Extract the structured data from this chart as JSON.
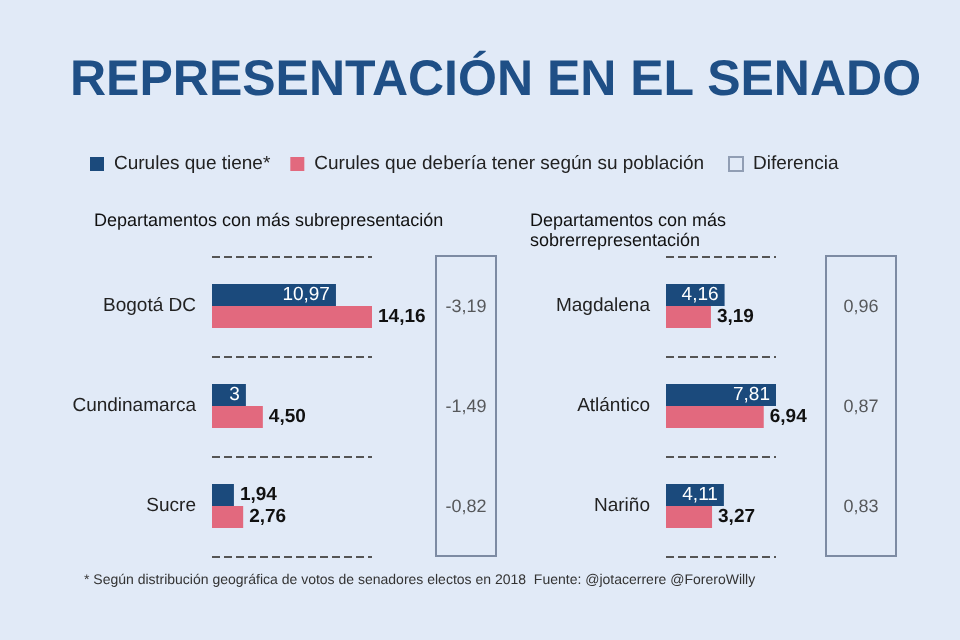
{
  "chart_data": [
    {
      "type": "bar",
      "orientation": "horizontal",
      "title": "REPRESENTACIÓN EN EL SENADO",
      "subtitle": "Departamentos con más subrepresentación",
      "categories": [
        "Bogotá DC",
        "Cundinamarca",
        "Sucre"
      ],
      "series": [
        {
          "name": "Curules que tiene*",
          "color": "#1b4a7c",
          "values": [
            10.97,
            3,
            1.94
          ],
          "value_labels": [
            "10,97",
            "3",
            "1,94"
          ]
        },
        {
          "name": "Curules que debería tener según su población",
          "color": "#e2697e",
          "values": [
            14.16,
            4.5,
            2.76
          ],
          "value_labels": [
            "14,16",
            "4,50",
            "2,76"
          ]
        }
      ],
      "grid": "y",
      "legend": "top",
      "annotations": [
        "* Según distribución geográfica de votos de senadores electos en 2018  Fuente: @jotacerrere @ForeroWilly"
      ]
    },
    {
      "type": "other",
      "categories": [
        null,
        null,
        null
      ],
      "series": [
        {
          "name": "Diferencia",
          "color": "#7d8ba3",
          "values": [
            -3.19,
            -1.49,
            -0.82
          ],
          "value_labels": [
            "-3,19",
            "-1,49",
            "-0,82"
          ]
        }
      ],
      "legend": "top"
    },
    {
      "type": "bar",
      "orientation": "horizontal",
      "subtitle": "Departamentos con más sobrerrepresentación",
      "categories": [
        "Magdalena",
        "Atlántico",
        "Nariño"
      ],
      "series": [
        {
          "color": "#1b4a7c",
          "values": [
            4.16,
            7.81,
            4.11
          ],
          "value_labels": [
            "4,16",
            "7,81",
            "4,11"
          ]
        },
        {
          "color": "#e2697e",
          "values": [
            3.19,
            6.94,
            3.27
          ],
          "value_labels": [
            "3,19",
            "6,94",
            "3,27"
          ]
        }
      ],
      "grid": "y"
    },
    {
      "type": "other",
      "categories": [
        null,
        null,
        null
      ],
      "series": [
        {
          "color": "#7d8ba3",
          "values": [
            0.96,
            0.87,
            0.83
          ],
          "value_labels": [
            "0,96",
            "0,87",
            "0,83"
          ]
        }
      ]
    }
  ]
}
